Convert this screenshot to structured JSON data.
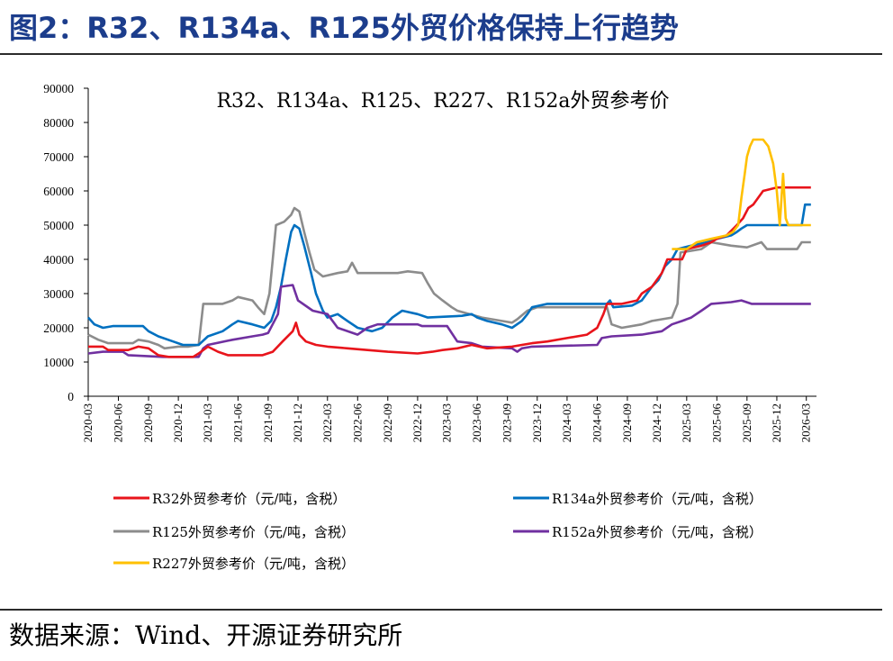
{
  "figure": {
    "title": "图2：R32、R134a、R125外贸价格保持上行趋势",
    "source": "数据来源：Wind、开源证券研究所"
  },
  "chart_data": {
    "type": "line",
    "title": "R32、R134a、R125、R227、R152a外贸参考价",
    "xlabel": "",
    "ylabel": "",
    "ylim": [
      0,
      90000
    ],
    "yticks": [
      0,
      10000,
      20000,
      30000,
      40000,
      50000,
      60000,
      70000,
      80000,
      90000
    ],
    "x_range": [
      "2020-03",
      "2026-04"
    ],
    "xticks": [
      "2020-03",
      "2020-06",
      "2020-09",
      "2020-12",
      "2021-03",
      "2021-06",
      "2021-09",
      "2021-12",
      "2022-03",
      "2022-06",
      "2022-09",
      "2022-12",
      "2023-03",
      "2023-06",
      "2023-09",
      "2023-12",
      "2024-03",
      "2024-06",
      "2024-09",
      "2024-12",
      "2025-03",
      "2025-06",
      "2025-09",
      "2025-12",
      "2026-03"
    ],
    "grid": false,
    "legend_position": "bottom",
    "series": [
      {
        "name": "R32外贸参考价（元/吨，含税）",
        "color": "#e8141b",
        "points": [
          [
            "2020-03-01",
            14500
          ],
          [
            "2020-04-15",
            14500
          ],
          [
            "2020-05-01",
            13500
          ],
          [
            "2020-07-01",
            13500
          ],
          [
            "2020-08-01",
            14500
          ],
          [
            "2020-09-01",
            14000
          ],
          [
            "2020-10-01",
            12000
          ],
          [
            "2020-11-01",
            11500
          ],
          [
            "2021-01-15",
            11500
          ],
          [
            "2021-02-01",
            12500
          ],
          [
            "2021-03-01",
            14500
          ],
          [
            "2021-04-01",
            13000
          ],
          [
            "2021-05-01",
            12000
          ],
          [
            "2021-08-15",
            12000
          ],
          [
            "2021-09-15",
            13000
          ],
          [
            "2021-10-15",
            16000
          ],
          [
            "2021-11-15",
            19000
          ],
          [
            "2021-11-25",
            21500
          ],
          [
            "2021-12-05",
            18000
          ],
          [
            "2021-12-25",
            16000
          ],
          [
            "2022-01-25",
            15000
          ],
          [
            "2022-03-01",
            14500
          ],
          [
            "2022-05-01",
            14000
          ],
          [
            "2022-07-01",
            13500
          ],
          [
            "2022-09-01",
            13000
          ],
          [
            "2022-12-01",
            12500
          ],
          [
            "2023-01-15",
            13000
          ],
          [
            "2023-02-15",
            13500
          ],
          [
            "2023-04-01",
            14000
          ],
          [
            "2023-05-15",
            15000
          ],
          [
            "2023-07-01",
            14000
          ],
          [
            "2023-09-15",
            14500
          ],
          [
            "2023-11-15",
            15500
          ],
          [
            "2024-01-01",
            16000
          ],
          [
            "2024-03-01",
            17000
          ],
          [
            "2024-05-01",
            18000
          ],
          [
            "2024-06-01",
            20000
          ],
          [
            "2024-06-20",
            24000
          ],
          [
            "2024-07-01",
            27000
          ],
          [
            "2024-08-15",
            27000
          ],
          [
            "2024-10-01",
            28000
          ],
          [
            "2024-10-15",
            30000
          ],
          [
            "2024-11-15",
            32000
          ],
          [
            "2024-12-15",
            36000
          ],
          [
            "2025-01-01",
            40000
          ],
          [
            "2025-02-15",
            40000
          ],
          [
            "2025-03-01",
            43000
          ],
          [
            "2025-04-15",
            44000
          ],
          [
            "2025-05-15",
            45000
          ],
          [
            "2025-06-01",
            46000
          ],
          [
            "2025-07-01",
            47000
          ],
          [
            "2025-08-01",
            50000
          ],
          [
            "2025-08-20",
            52000
          ],
          [
            "2025-09-05",
            55000
          ],
          [
            "2025-09-20",
            56000
          ],
          [
            "2025-10-05",
            58000
          ],
          [
            "2025-10-20",
            60000
          ],
          [
            "2025-12-01",
            61000
          ],
          [
            "2026-03-15",
            61000
          ]
        ]
      },
      {
        "name": "R134a外贸参考价（元/吨，含税）",
        "color": "#0070c0",
        "points": [
          [
            "2020-03-01",
            23000
          ],
          [
            "2020-03-20",
            21000
          ],
          [
            "2020-04-15",
            20000
          ],
          [
            "2020-05-15",
            20500
          ],
          [
            "2020-08-15",
            20500
          ],
          [
            "2020-09-01",
            19000
          ],
          [
            "2020-10-01",
            17500
          ],
          [
            "2020-11-15",
            16000
          ],
          [
            "2020-12-15",
            15000
          ],
          [
            "2021-02-01",
            15000
          ],
          [
            "2021-03-01",
            17500
          ],
          [
            "2021-04-15",
            19000
          ],
          [
            "2021-05-15",
            21000
          ],
          [
            "2021-06-01",
            22000
          ],
          [
            "2021-07-15",
            21000
          ],
          [
            "2021-08-20",
            20000
          ],
          [
            "2021-09-10",
            22000
          ],
          [
            "2021-09-25",
            26000
          ],
          [
            "2021-10-10",
            32000
          ],
          [
            "2021-10-25",
            40000
          ],
          [
            "2021-11-10",
            48000
          ],
          [
            "2021-11-20",
            50000
          ],
          [
            "2021-12-05",
            49000
          ],
          [
            "2021-12-20",
            44000
          ],
          [
            "2022-01-10",
            36000
          ],
          [
            "2022-01-25",
            30000
          ],
          [
            "2022-02-15",
            25000
          ],
          [
            "2022-03-01",
            23000
          ],
          [
            "2022-04-01",
            24000
          ],
          [
            "2022-05-01",
            22000
          ],
          [
            "2022-06-01",
            20000
          ],
          [
            "2022-07-15",
            19000
          ],
          [
            "2022-08-15",
            20000
          ],
          [
            "2022-09-15",
            23000
          ],
          [
            "2022-10-15",
            25000
          ],
          [
            "2022-12-01",
            24000
          ],
          [
            "2023-01-01",
            23000
          ],
          [
            "2023-04-15",
            23500
          ],
          [
            "2023-05-15",
            24000
          ],
          [
            "2023-06-01",
            23000
          ],
          [
            "2023-07-01",
            22000
          ],
          [
            "2023-08-15",
            21000
          ],
          [
            "2023-09-15",
            20000
          ],
          [
            "2023-10-15",
            22000
          ],
          [
            "2023-11-01",
            24000
          ],
          [
            "2023-11-15",
            26000
          ],
          [
            "2024-01-01",
            27000
          ],
          [
            "2024-07-01",
            27000
          ],
          [
            "2024-07-10",
            28000
          ],
          [
            "2024-07-20",
            26000
          ],
          [
            "2024-09-15",
            26500
          ],
          [
            "2024-10-15",
            28000
          ],
          [
            "2024-11-15",
            32000
          ],
          [
            "2024-12-05",
            34000
          ],
          [
            "2024-12-25",
            38000
          ],
          [
            "2025-01-15",
            40000
          ],
          [
            "2025-02-01",
            43000
          ],
          [
            "2025-03-15",
            44000
          ],
          [
            "2025-05-01",
            45000
          ],
          [
            "2025-06-01",
            46000
          ],
          [
            "2025-07-15",
            47000
          ],
          [
            "2025-08-01",
            48000
          ],
          [
            "2025-08-15",
            49000
          ],
          [
            "2025-09-01",
            50000
          ],
          [
            "2026-02-15",
            50000
          ],
          [
            "2026-02-25",
            56000
          ],
          [
            "2026-03-15",
            56000
          ]
        ]
      },
      {
        "name": "R125外贸参考价（元/吨，含税）",
        "color": "#8c8c8c",
        "points": [
          [
            "2020-03-01",
            18000
          ],
          [
            "2020-04-01",
            16500
          ],
          [
            "2020-05-01",
            15500
          ],
          [
            "2020-07-15",
            15500
          ],
          [
            "2020-08-01",
            16500
          ],
          [
            "2020-09-01",
            16000
          ],
          [
            "2020-10-01",
            15000
          ],
          [
            "2020-10-20",
            14000
          ],
          [
            "2020-12-01",
            14500
          ],
          [
            "2021-01-01",
            14500
          ],
          [
            "2021-02-01",
            15000
          ],
          [
            "2021-02-15",
            27000
          ],
          [
            "2021-04-15",
            27000
          ],
          [
            "2021-05-15",
            28000
          ],
          [
            "2021-06-01",
            29000
          ],
          [
            "2021-07-15",
            28000
          ],
          [
            "2021-08-01",
            26000
          ],
          [
            "2021-08-20",
            24000
          ],
          [
            "2021-09-05",
            30000
          ],
          [
            "2021-09-15",
            40000
          ],
          [
            "2021-09-25",
            50000
          ],
          [
            "2021-10-20",
            51000
          ],
          [
            "2021-11-10",
            53000
          ],
          [
            "2021-11-20",
            55000
          ],
          [
            "2021-12-05",
            54000
          ],
          [
            "2021-12-20",
            48000
          ],
          [
            "2022-01-05",
            42000
          ],
          [
            "2022-01-20",
            37000
          ],
          [
            "2022-02-15",
            35000
          ],
          [
            "2022-04-01",
            36000
          ],
          [
            "2022-05-01",
            36500
          ],
          [
            "2022-05-15",
            39000
          ],
          [
            "2022-06-01",
            36000
          ],
          [
            "2022-10-01",
            36000
          ],
          [
            "2022-11-01",
            36500
          ],
          [
            "2022-12-15",
            36000
          ],
          [
            "2023-01-01",
            33000
          ],
          [
            "2023-01-20",
            30000
          ],
          [
            "2023-02-15",
            28000
          ],
          [
            "2023-03-15",
            26000
          ],
          [
            "2023-04-01",
            25000
          ],
          [
            "2023-06-15",
            23000
          ],
          [
            "2023-08-15",
            22000
          ],
          [
            "2023-09-15",
            21500
          ],
          [
            "2023-10-01",
            22500
          ],
          [
            "2023-11-01",
            25000
          ],
          [
            "2023-12-01",
            26000
          ],
          [
            "2024-07-01",
            26000
          ],
          [
            "2024-07-15",
            21000
          ],
          [
            "2024-08-15",
            20000
          ],
          [
            "2024-10-15",
            21000
          ],
          [
            "2024-11-15",
            22000
          ],
          [
            "2025-01-15",
            23000
          ],
          [
            "2025-02-01",
            27000
          ],
          [
            "2025-02-10",
            42000
          ],
          [
            "2025-04-15",
            43000
          ],
          [
            "2025-05-15",
            45000
          ],
          [
            "2025-07-15",
            44000
          ],
          [
            "2025-09-01",
            43500
          ],
          [
            "2025-10-15",
            45000
          ],
          [
            "2025-11-01",
            43000
          ],
          [
            "2026-02-01",
            43000
          ],
          [
            "2026-02-15",
            45000
          ],
          [
            "2026-03-15",
            45000
          ]
        ]
      },
      {
        "name": "R152a外贸参考价（元/吨，含税）",
        "color": "#7030a0",
        "points": [
          [
            "2020-03-01",
            12500
          ],
          [
            "2020-04-15",
            13000
          ],
          [
            "2020-06-15",
            13000
          ],
          [
            "2020-07-01",
            12000
          ],
          [
            "2020-10-15",
            11500
          ],
          [
            "2021-02-01",
            11500
          ],
          [
            "2021-02-15",
            14000
          ],
          [
            "2021-03-01",
            15000
          ],
          [
            "2021-05-15",
            16500
          ],
          [
            "2021-07-15",
            17500
          ],
          [
            "2021-08-15",
            18000
          ],
          [
            "2021-09-01",
            18500
          ],
          [
            "2021-10-01",
            24000
          ],
          [
            "2021-10-10",
            32000
          ],
          [
            "2021-11-15",
            32500
          ],
          [
            "2021-12-01",
            28000
          ],
          [
            "2022-01-15",
            25000
          ],
          [
            "2022-03-01",
            24000
          ],
          [
            "2022-04-01",
            20000
          ],
          [
            "2022-06-01",
            18000
          ],
          [
            "2022-07-01",
            20000
          ],
          [
            "2022-08-01",
            21000
          ],
          [
            "2022-12-01",
            21000
          ],
          [
            "2022-12-15",
            20500
          ],
          [
            "2023-03-01",
            20500
          ],
          [
            "2023-04-01",
            16000
          ],
          [
            "2023-05-15",
            15500
          ],
          [
            "2023-06-15",
            14500
          ],
          [
            "2023-09-15",
            14000
          ],
          [
            "2023-10-01",
            13000
          ],
          [
            "2023-10-15",
            14000
          ],
          [
            "2023-11-15",
            14500
          ],
          [
            "2024-06-01",
            15000
          ],
          [
            "2024-06-15",
            17000
          ],
          [
            "2024-07-15",
            17500
          ],
          [
            "2024-10-15",
            18000
          ],
          [
            "2024-12-15",
            19000
          ],
          [
            "2025-01-15",
            21000
          ],
          [
            "2025-02-15",
            22000
          ],
          [
            "2025-03-15",
            23000
          ],
          [
            "2025-04-15",
            25000
          ],
          [
            "2025-05-15",
            27000
          ],
          [
            "2025-07-15",
            27500
          ],
          [
            "2025-08-15",
            28000
          ],
          [
            "2025-09-15",
            27000
          ],
          [
            "2026-03-15",
            27000
          ]
        ]
      },
      {
        "name": "R227外贸参考价（元/吨，含税）",
        "color": "#ffc000",
        "points": [
          [
            "2025-01-15",
            43000
          ],
          [
            "2025-03-01",
            43000
          ],
          [
            "2025-04-01",
            45000
          ],
          [
            "2025-05-15",
            46000
          ],
          [
            "2025-07-01",
            47000
          ],
          [
            "2025-07-20",
            48000
          ],
          [
            "2025-08-05",
            50000
          ],
          [
            "2025-08-15",
            58000
          ],
          [
            "2025-08-25",
            65000
          ],
          [
            "2025-09-01",
            70000
          ],
          [
            "2025-09-10",
            73000
          ],
          [
            "2025-09-20",
            75000
          ],
          [
            "2025-10-20",
            75000
          ],
          [
            "2025-11-05",
            73000
          ],
          [
            "2025-11-20",
            68000
          ],
          [
            "2025-12-01",
            60000
          ],
          [
            "2025-12-10",
            50000
          ],
          [
            "2025-12-20",
            65000
          ],
          [
            "2025-12-28",
            52000
          ],
          [
            "2026-01-05",
            50000
          ],
          [
            "2026-03-15",
            50000
          ]
        ]
      }
    ]
  }
}
